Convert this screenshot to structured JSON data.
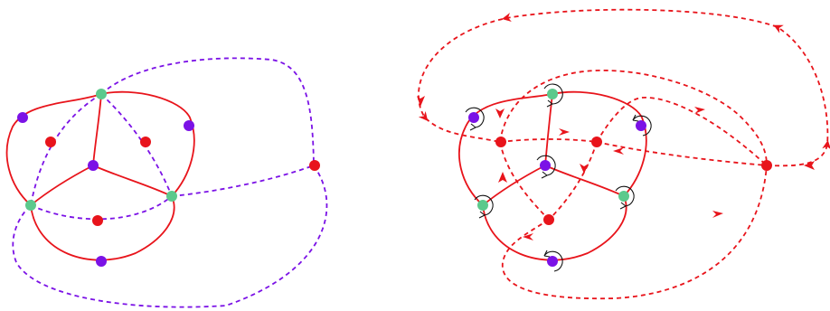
{
  "colors": {
    "red": "#e8141b",
    "purple": "#7b12e6",
    "green": "#5cc98c",
    "black": "#111111"
  },
  "panels": [
    {
      "name": "left-graph",
      "solid_edge_color": "red",
      "dashed_edge_color": "purple",
      "vertex_colors": [
        "green",
        "purple",
        "red"
      ]
    },
    {
      "name": "right-graph",
      "solid_edge_color": "red",
      "dashed_edge_color": "red",
      "vertex_colors": [
        "green",
        "purple",
        "red"
      ],
      "rotation_markers": true,
      "arrows_on_dashed_edges": true
    }
  ]
}
